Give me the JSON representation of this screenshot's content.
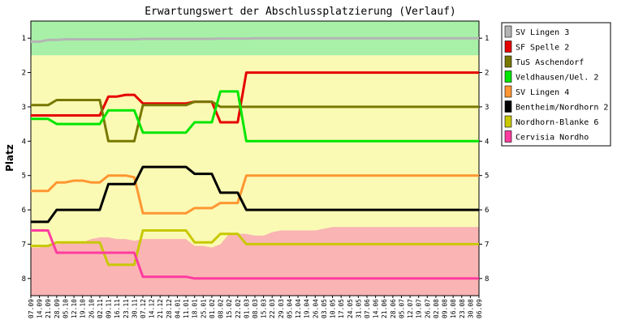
{
  "chart_data": {
    "type": "line",
    "title": "Erwartungswert der Abschlussplatzierung (Verlauf)",
    "ylabel": "Platz",
    "ylim": [
      0.5,
      8.5
    ],
    "y_ticks": [
      "1",
      "2",
      "3",
      "4",
      "5",
      "6",
      "7",
      "8"
    ],
    "x": [
      "07.09",
      "14.09",
      "21.09",
      "28.09",
      "05.10",
      "12.10",
      "19.10",
      "26.10",
      "02.11",
      "09.11",
      "16.11",
      "23.11",
      "30.11",
      "07.12",
      "14.12",
      "21.12",
      "28.12",
      "04.01",
      "11.01",
      "18.01",
      "25.01",
      "01.02",
      "08.02",
      "15.02",
      "22.02",
      "01.03",
      "08.03",
      "15.03",
      "22.03",
      "29.03",
      "05.04",
      "12.04",
      "19.04",
      "26.04",
      "03.05",
      "10.05",
      "17.05",
      "24.05",
      "31.05",
      "07.06",
      "14.06",
      "21.06",
      "28.06",
      "05.07",
      "12.07",
      "19.07",
      "26.07",
      "02.08",
      "09.08",
      "16.08",
      "23.08",
      "30.08",
      "06.09"
    ],
    "zones": [
      {
        "from": 0.5,
        "to": 1.5,
        "color": "#a8f0a8"
      },
      {
        "from": 1.5,
        "to": 8.5,
        "color": "#fafab4"
      }
    ],
    "relegation_boundary": [
      7.1,
      7.1,
      7.0,
      7.0,
      6.95,
      6.95,
      6.95,
      6.85,
      6.8,
      6.8,
      6.85,
      6.85,
      6.9,
      6.85,
      6.85,
      6.85,
      6.85,
      6.85,
      6.85,
      7.05,
      7.05,
      7.1,
      7.0,
      6.7,
      6.7,
      6.7,
      6.75,
      6.75,
      6.65,
      6.6,
      6.6,
      6.6,
      6.6,
      6.6,
      6.55,
      6.5,
      6.5,
      6.5,
      6.5,
      6.5,
      6.5,
      6.5,
      6.5,
      6.5,
      6.5,
      6.5,
      6.5,
      6.5,
      6.5,
      6.5,
      6.5,
      6.5,
      6.5
    ],
    "relegation_color": "#fab4b4",
    "series": [
      {
        "name": "SV Lingen 3",
        "color": "#b4b4b4",
        "values": [
          1.1,
          1.1,
          1.05,
          1.05,
          1.03,
          1.03,
          1.03,
          1.03,
          1.03,
          1.03,
          1.03,
          1.03,
          1.03,
          1.02,
          1.02,
          1.02,
          1.02,
          1.02,
          1.02,
          1.02,
          1.02,
          1.02,
          1.01,
          1.01,
          1.01,
          1.01,
          1.0,
          1.0,
          1.0,
          1.0,
          1.0,
          1.0,
          1.0,
          1.0,
          1.0,
          1.0,
          1.0,
          1.0,
          1.0,
          1.0,
          1.0,
          1.0,
          1.0,
          1.0,
          1.0,
          1.0,
          1.0,
          1.0,
          1.0,
          1.0,
          1.0,
          1.0,
          1.0
        ]
      },
      {
        "name": "SF Spelle 2",
        "color": "#e60000",
        "values": [
          3.25,
          3.25,
          3.25,
          3.25,
          3.25,
          3.25,
          3.25,
          3.25,
          3.25,
          2.7,
          2.7,
          2.65,
          2.65,
          2.9,
          2.9,
          2.9,
          2.9,
          2.9,
          2.9,
          2.85,
          2.85,
          2.85,
          3.45,
          3.45,
          3.45,
          2.0,
          2.0,
          2.0,
          2.0,
          2.0,
          2.0,
          2.0,
          2.0,
          2.0,
          2.0,
          2.0,
          2.0,
          2.0,
          2.0,
          2.0,
          2.0,
          2.0,
          2.0,
          2.0,
          2.0,
          2.0,
          2.0,
          2.0,
          2.0,
          2.0,
          2.0,
          2.0,
          2.0
        ]
      },
      {
        "name": "TuS Aschendorf",
        "color": "#787800",
        "values": [
          2.95,
          2.95,
          2.95,
          2.8,
          2.8,
          2.8,
          2.8,
          2.8,
          2.8,
          4.0,
          4.0,
          4.0,
          4.0,
          2.95,
          2.95,
          2.95,
          2.95,
          2.95,
          2.95,
          2.85,
          2.85,
          2.85,
          3.0,
          3.0,
          3.0,
          3.0,
          3.0,
          3.0,
          3.0,
          3.0,
          3.0,
          3.0,
          3.0,
          3.0,
          3.0,
          3.0,
          3.0,
          3.0,
          3.0,
          3.0,
          3.0,
          3.0,
          3.0,
          3.0,
          3.0,
          3.0,
          3.0,
          3.0,
          3.0,
          3.0,
          3.0,
          3.0,
          3.0
        ]
      },
      {
        "name": "Veldhausen/Uel. 2",
        "color": "#00e600",
        "values": [
          3.35,
          3.35,
          3.35,
          3.5,
          3.5,
          3.5,
          3.5,
          3.5,
          3.5,
          3.1,
          3.1,
          3.1,
          3.1,
          3.75,
          3.75,
          3.75,
          3.75,
          3.75,
          3.75,
          3.45,
          3.45,
          3.45,
          2.55,
          2.55,
          2.55,
          4.0,
          4.0,
          4.0,
          4.0,
          4.0,
          4.0,
          4.0,
          4.0,
          4.0,
          4.0,
          4.0,
          4.0,
          4.0,
          4.0,
          4.0,
          4.0,
          4.0,
          4.0,
          4.0,
          4.0,
          4.0,
          4.0,
          4.0,
          4.0,
          4.0,
          4.0,
          4.0,
          4.0
        ]
      },
      {
        "name": "SV Lingen 4",
        "color": "#ff9632",
        "values": [
          5.45,
          5.45,
          5.45,
          5.2,
          5.2,
          5.15,
          5.15,
          5.2,
          5.2,
          5.0,
          5.0,
          5.0,
          5.05,
          6.1,
          6.1,
          6.1,
          6.1,
          6.1,
          6.1,
          5.95,
          5.95,
          5.95,
          5.8,
          5.8,
          5.8,
          5.0,
          5.0,
          5.0,
          5.0,
          5.0,
          5.0,
          5.0,
          5.0,
          5.0,
          5.0,
          5.0,
          5.0,
          5.0,
          5.0,
          5.0,
          5.0,
          5.0,
          5.0,
          5.0,
          5.0,
          5.0,
          5.0,
          5.0,
          5.0,
          5.0,
          5.0,
          5.0,
          5.0
        ]
      },
      {
        "name": "Bentheim/Nordhorn 2",
        "color": "#000000",
        "values": [
          6.35,
          6.35,
          6.35,
          6.0,
          6.0,
          6.0,
          6.0,
          6.0,
          6.0,
          5.25,
          5.25,
          5.25,
          5.25,
          4.75,
          4.75,
          4.75,
          4.75,
          4.75,
          4.75,
          4.95,
          4.95,
          4.95,
          5.5,
          5.5,
          5.5,
          6.0,
          6.0,
          6.0,
          6.0,
          6.0,
          6.0,
          6.0,
          6.0,
          6.0,
          6.0,
          6.0,
          6.0,
          6.0,
          6.0,
          6.0,
          6.0,
          6.0,
          6.0,
          6.0,
          6.0,
          6.0,
          6.0,
          6.0,
          6.0,
          6.0,
          6.0,
          6.0,
          6.0
        ]
      },
      {
        "name": "Nordhorn-Blanke 6",
        "color": "#c8c800",
        "values": [
          7.05,
          7.05,
          7.05,
          6.95,
          6.95,
          6.95,
          6.95,
          6.95,
          6.95,
          7.6,
          7.6,
          7.6,
          7.6,
          6.6,
          6.6,
          6.6,
          6.6,
          6.6,
          6.6,
          6.95,
          6.95,
          6.95,
          6.7,
          6.7,
          6.7,
          7.0,
          7.0,
          7.0,
          7.0,
          7.0,
          7.0,
          7.0,
          7.0,
          7.0,
          7.0,
          7.0,
          7.0,
          7.0,
          7.0,
          7.0,
          7.0,
          7.0,
          7.0,
          7.0,
          7.0,
          7.0,
          7.0,
          7.0,
          7.0,
          7.0,
          7.0,
          7.0,
          7.0
        ]
      },
      {
        "name": "Cervisia Nordho",
        "color": "#ff3ca0",
        "values": [
          6.6,
          6.6,
          6.6,
          7.25,
          7.25,
          7.25,
          7.25,
          7.25,
          7.25,
          7.25,
          7.25,
          7.25,
          7.25,
          7.95,
          7.95,
          7.95,
          7.95,
          7.95,
          7.95,
          8.0,
          8.0,
          8.0,
          8.0,
          8.0,
          8.0,
          8.0,
          8.0,
          8.0,
          8.0,
          8.0,
          8.0,
          8.0,
          8.0,
          8.0,
          8.0,
          8.0,
          8.0,
          8.0,
          8.0,
          8.0,
          8.0,
          8.0,
          8.0,
          8.0,
          8.0,
          8.0,
          8.0,
          8.0,
          8.0,
          8.0,
          8.0,
          8.0,
          8.0
        ]
      }
    ],
    "legend_position": "right"
  }
}
